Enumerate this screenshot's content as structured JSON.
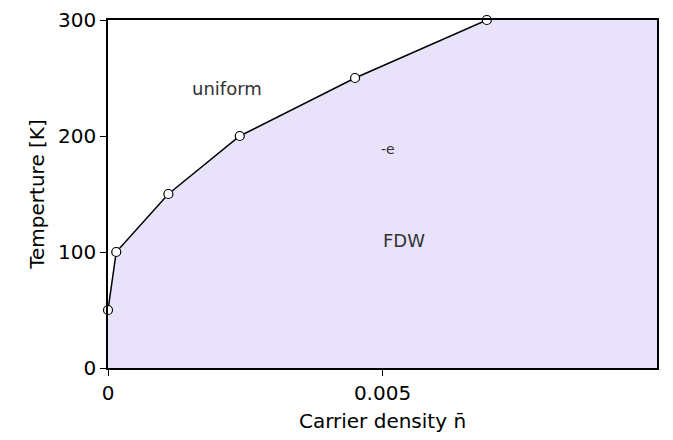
{
  "chart_data": {
    "type": "line",
    "x_label": "Carrier density n̄",
    "y_label": "Temperture [K]",
    "x": [
      0,
      0.00015,
      0.0011,
      0.0024,
      0.0045,
      0.0069
    ],
    "values": [
      50,
      100,
      150,
      200,
      250,
      300
    ],
    "color": "#000000",
    "marker": "circle",
    "xlim": [
      0,
      0.01
    ],
    "ylim": [
      0,
      300
    ],
    "xticks": [
      0,
      0.005
    ],
    "yticks": [
      0,
      100,
      200,
      300
    ],
    "grid": false,
    "annotations": [
      {
        "text": "uniform"
      },
      {
        "text": "FDW"
      },
      {
        "text": "-e"
      }
    ]
  }
}
